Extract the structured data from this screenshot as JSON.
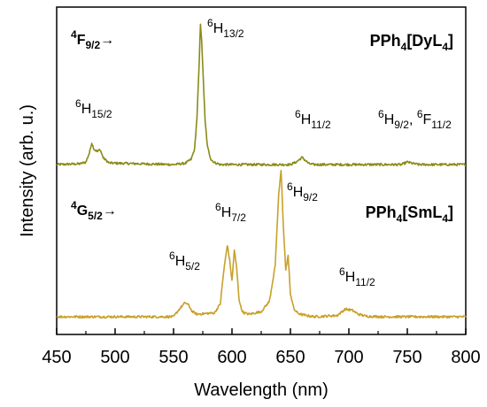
{
  "chart_data": {
    "type": "line",
    "xlabel": "Wavelength (nm)",
    "ylabel": "Intensity (arb. u.)",
    "xlim": [
      450,
      800
    ],
    "x_ticks": [
      "450",
      "500",
      "550",
      "600",
      "650",
      "700",
      "750",
      "800"
    ],
    "grid": false,
    "series": [
      {
        "name": "PPh4[DyL4]",
        "name_parts": [
          [
            "PPh",
            "normal"
          ],
          [
            "4",
            "sub"
          ],
          [
            "[DyL",
            "normal"
          ],
          [
            "4",
            "sub"
          ],
          [
            "]",
            "normal"
          ]
        ],
        "color": "#8a8b17",
        "x": [
          450,
          470,
          475,
          478,
          480,
          482,
          485,
          487,
          490,
          495,
          550,
          560,
          565,
          568,
          570,
          572,
          573,
          574,
          575,
          577,
          579,
          582,
          585,
          590,
          650,
          655,
          660,
          663,
          666,
          670,
          745,
          750,
          755,
          760,
          800
        ],
        "y": [
          0,
          0.3,
          1,
          4.5,
          8.5,
          6,
          5,
          6,
          2.5,
          0.6,
          0,
          0.5,
          2,
          6,
          18,
          40,
          55,
          49,
          38,
          17,
          7,
          2,
          0.8,
          0,
          0,
          1,
          2.8,
          1.5,
          0.3,
          0,
          0,
          1,
          0.4,
          0,
          0
        ]
      },
      {
        "name": "PPh4[SmL4]",
        "name_parts": [
          [
            "PPh",
            "normal"
          ],
          [
            "4",
            "sub"
          ],
          [
            "[SmL",
            "normal"
          ],
          [
            "4",
            "sub"
          ],
          [
            "]",
            "normal"
          ]
        ],
        "color": "#c8a02a",
        "x": [
          450,
          550,
          555,
          560,
          563,
          566,
          570,
          585,
          590,
          593,
          596,
          598,
          600,
          602,
          604,
          606,
          608,
          610,
          615,
          625,
          632,
          637,
          640,
          642,
          644,
          646,
          648,
          650,
          653,
          656,
          660,
          670,
          690,
          697,
          703,
          708,
          715,
          730,
          800
        ],
        "y": [
          0,
          0,
          3,
          5.5,
          4.5,
          2,
          1,
          1.5,
          5,
          18,
          28,
          22,
          14,
          26,
          19,
          7,
          3,
          1.5,
          1,
          2,
          6,
          20,
          48,
          57,
          35,
          18,
          24,
          9,
          3,
          1.5,
          0.8,
          0,
          0.5,
          3,
          2.5,
          1,
          0.2,
          0,
          0
        ]
      }
    ],
    "annotations": [
      {
        "text_parts": [
          [
            "4",
            "sup"
          ],
          [
            "F",
            "normal"
          ],
          [
            "9/2",
            "sub"
          ],
          [
            "→",
            "normal"
          ]
        ],
        "style": "bold"
      },
      {
        "text_parts": [
          [
            "6",
            "sup"
          ],
          [
            "H",
            "normal"
          ],
          [
            "15/2",
            "sub"
          ]
        ],
        "style": "normal"
      },
      {
        "text_parts": [
          [
            "6",
            "sup"
          ],
          [
            "H",
            "normal"
          ],
          [
            "13/2",
            "sub"
          ]
        ],
        "style": "normal"
      },
      {
        "text_parts": [
          [
            "6",
            "sup"
          ],
          [
            "H",
            "normal"
          ],
          [
            "11/2",
            "sub"
          ]
        ],
        "style": "normal"
      },
      {
        "text_parts": [
          [
            "6",
            "sup"
          ],
          [
            "H",
            "normal"
          ],
          [
            "9/2",
            "sub"
          ],
          [
            ", ",
            "normal"
          ],
          [
            "6",
            "sup"
          ],
          [
            "F",
            "normal"
          ],
          [
            "11/2",
            "sub"
          ]
        ],
        "style": "normal"
      },
      {
        "text_parts": [
          [
            "4",
            "sup"
          ],
          [
            "G",
            "normal"
          ],
          [
            "5/2",
            "sub"
          ],
          [
            "→",
            "normal"
          ]
        ],
        "style": "bold"
      },
      {
        "text_parts": [
          [
            "6",
            "sup"
          ],
          [
            "H",
            "normal"
          ],
          [
            "5/2",
            "sub"
          ]
        ],
        "style": "normal"
      },
      {
        "text_parts": [
          [
            "6",
            "sup"
          ],
          [
            "H",
            "normal"
          ],
          [
            "7/2",
            "sub"
          ]
        ],
        "style": "normal"
      },
      {
        "text_parts": [
          [
            "6",
            "sup"
          ],
          [
            "H",
            "normal"
          ],
          [
            "9/2",
            "sub"
          ]
        ],
        "style": "normal"
      },
      {
        "text_parts": [
          [
            "6",
            "sup"
          ],
          [
            "H",
            "normal"
          ],
          [
            "11/2",
            "sub"
          ]
        ],
        "style": "normal"
      }
    ]
  }
}
